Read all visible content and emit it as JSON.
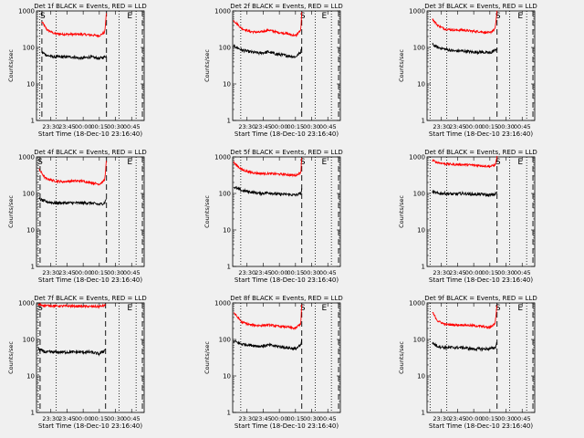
{
  "figure": {
    "background": "#f0f0f0"
  },
  "panels": [
    {
      "title": "Det 1f BLACK = Events, RED = LLD"
    },
    {
      "title": "Det 2f BLACK = Events, RED = LLD"
    },
    {
      "title": "Det 3f BLACK = Events, RED = LLD"
    },
    {
      "title": "Det 4f BLACK = Events, RED = LLD"
    },
    {
      "title": "Det 5f BLACK = Events, RED = LLD"
    },
    {
      "title": "Det 6f BLACK = Events, RED = LLD"
    },
    {
      "title": "Det 7f BLACK = Events, RED = LLD"
    },
    {
      "title": "Det 8f BLACK = Events, RED = LLD"
    },
    {
      "title": "Det 9f BLACK = Events, RED = LLD"
    }
  ],
  "chart_data": {
    "type": "line",
    "layout": "3x3 grid of panels",
    "xlabel": "Start Time (18-Dec-10 23:16:40)",
    "ylabel": "Counts/sec",
    "yscale": "log",
    "ylim": [
      1,
      1000
    ],
    "xlim_seconds_after_start": [
      0,
      6000
    ],
    "x_tick_labels": [
      "23:30",
      "23:45",
      "00:00",
      "00:15",
      "00:30",
      "00:45"
    ],
    "x_tick_seconds_after_start": [
      800,
      1700,
      2600,
      3500,
      4400,
      5300
    ],
    "y_tick_labels": [
      "1",
      "10",
      "100",
      "1000"
    ],
    "y_tick_values": [
      1,
      10,
      100,
      1000
    ],
    "series_colors": {
      "Events": "#000000",
      "LLD": "#ff0000"
    },
    "markers": [
      {
        "label": "S",
        "style": "dashed"
      },
      {
        "label": "E",
        "style": "dashed"
      }
    ],
    "panels": [
      {
        "title": "Det 1f BLACK = Events, RED = LLD",
        "data_start": 300,
        "data_end": 3900,
        "dotted": [
          170,
          1100,
          4600,
          5550
        ],
        "dashed": [
          300,
          3900,
          5900
        ],
        "S": 300,
        "E": 5200,
        "lld": {
          "t": [
            300,
            600,
            1000,
            1500,
            2000,
            2500,
            3000,
            3500,
            3800,
            3900
          ],
          "v": [
            500,
            300,
            240,
            230,
            230,
            230,
            220,
            210,
            260,
            900
          ]
        },
        "events": {
          "t": [
            300,
            600,
            1000,
            1500,
            2000,
            2500,
            3000,
            3500,
            3800,
            3900
          ],
          "v": [
            75,
            60,
            55,
            55,
            55,
            50,
            55,
            50,
            55,
            60
          ]
        }
      },
      {
        "title": "Det 2f BLACK = Events, RED = LLD",
        "data_start": 50,
        "data_end": 3850,
        "dotted": [
          450,
          4600,
          5500
        ],
        "dashed": [
          3850,
          5900
        ],
        "S": 3850,
        "E": 5100,
        "lld": {
          "t": [
            50,
            500,
            1000,
            1500,
            2000,
            2500,
            3000,
            3500,
            3800,
            3850
          ],
          "v": [
            550,
            330,
            270,
            260,
            300,
            260,
            240,
            210,
            300,
            900
          ]
        },
        "events": {
          "t": [
            50,
            500,
            1000,
            1500,
            2000,
            2500,
            3000,
            3500,
            3800,
            3850
          ],
          "v": [
            110,
            85,
            75,
            70,
            75,
            65,
            60,
            55,
            75,
            110
          ]
        }
      },
      {
        "title": "Det 3f BLACK = Events, RED = LLD",
        "data_start": 300,
        "data_end": 3900,
        "dotted": [
          170,
          1100,
          4600,
          5550
        ],
        "dashed": [
          3900,
          5900
        ],
        "S": 3900,
        "E": 5200,
        "lld": {
          "t": [
            300,
            600,
            1000,
            1500,
            2000,
            2500,
            3000,
            3500,
            3800,
            3900
          ],
          "v": [
            600,
            400,
            320,
            300,
            300,
            280,
            270,
            250,
            330,
            1000
          ]
        },
        "events": {
          "t": [
            300,
            600,
            1000,
            1500,
            2000,
            2500,
            3000,
            3500,
            3800,
            3900
          ],
          "v": [
            120,
            100,
            90,
            80,
            80,
            75,
            75,
            70,
            85,
            95
          ]
        }
      },
      {
        "title": "Det 4f BLACK = Events, RED = LLD",
        "data_start": 150,
        "data_end": 3900,
        "dotted": [
          100,
          1100,
          4600,
          5550
        ],
        "dashed": [
          200,
          3900,
          5900
        ],
        "S": 150,
        "E": 5200,
        "lld": {
          "t": [
            150,
            500,
            1000,
            1500,
            2000,
            2500,
            3000,
            3500,
            3800,
            3900
          ],
          "v": [
            450,
            260,
            220,
            210,
            220,
            220,
            200,
            180,
            230,
            850
          ]
        },
        "events": {
          "t": [
            150,
            500,
            1000,
            1500,
            2000,
            2500,
            3000,
            3500,
            3800,
            3900
          ],
          "v": [
            70,
            60,
            55,
            55,
            55,
            55,
            55,
            50,
            55,
            75
          ]
        }
      },
      {
        "title": "Det 5f BLACK = Events, RED = LLD",
        "data_start": 50,
        "data_end": 3850,
        "dotted": [
          450,
          4600,
          5500
        ],
        "dashed": [
          3850,
          5900
        ],
        "S": 3850,
        "E": 5100,
        "lld": {
          "t": [
            50,
            500,
            1000,
            1500,
            2000,
            2500,
            3000,
            3500,
            3800,
            3850
          ],
          "v": [
            700,
            450,
            380,
            350,
            350,
            340,
            330,
            310,
            380,
            1000
          ]
        },
        "events": {
          "t": [
            50,
            500,
            1000,
            1500,
            2000,
            2500,
            3000,
            3500,
            3800,
            3850
          ],
          "v": [
            150,
            120,
            110,
            100,
            105,
            95,
            95,
            90,
            100,
            130
          ]
        }
      },
      {
        "title": "Det 6f BLACK = Events, RED = LLD",
        "data_start": 300,
        "data_end": 3900,
        "dotted": [
          170,
          1100,
          4600,
          5550
        ],
        "dashed": [
          3900,
          5900
        ],
        "S": 3900,
        "E": 5200,
        "lld": {
          "t": [
            300,
            600,
            1000,
            1500,
            2000,
            2500,
            3000,
            3500,
            3800,
            3900
          ],
          "v": [
            800,
            700,
            650,
            620,
            620,
            600,
            580,
            550,
            600,
            1000
          ]
        },
        "events": {
          "t": [
            300,
            600,
            1000,
            1500,
            2000,
            2500,
            3000,
            3500,
            3800,
            3900
          ],
          "v": [
            110,
            100,
            100,
            95,
            100,
            95,
            95,
            90,
            95,
            110
          ]
        }
      },
      {
        "title": "Det 7f BLACK = Events, RED = LLD",
        "data_start": 100,
        "data_end": 3850,
        "dotted": [
          100,
          1100,
          4600,
          5550
        ],
        "dashed": [
          200,
          3850,
          5900
        ],
        "S": 150,
        "E": 5200,
        "lld": {
          "t": [
            100,
            500,
            1000,
            1500,
            2000,
            2500,
            3000,
            3500,
            3800,
            3850
          ],
          "v": [
            900,
            850,
            830,
            820,
            820,
            810,
            800,
            800,
            850,
            950
          ]
        },
        "events": {
          "t": [
            100,
            500,
            1000,
            1500,
            2000,
            2500,
            3000,
            3500,
            3800,
            3850
          ],
          "v": [
            55,
            45,
            45,
            45,
            45,
            45,
            45,
            40,
            50,
            60
          ]
        }
      },
      {
        "title": "Det 8f BLACK = Events, RED = LLD",
        "data_start": 50,
        "data_end": 3850,
        "dotted": [
          450,
          4600,
          5500
        ],
        "dashed": [
          3850,
          5900
        ],
        "S": 3850,
        "E": 5100,
        "lld": {
          "t": [
            50,
            500,
            1000,
            1500,
            2000,
            2500,
            3000,
            3500,
            3800,
            3850
          ],
          "v": [
            550,
            300,
            250,
            240,
            250,
            230,
            220,
            200,
            280,
            900
          ]
        },
        "events": {
          "t": [
            50,
            500,
            1000,
            1500,
            2000,
            2500,
            3000,
            3500,
            3800,
            3850
          ],
          "v": [
            90,
            75,
            70,
            65,
            70,
            65,
            60,
            55,
            70,
            100
          ]
        }
      },
      {
        "title": "Det 9f BLACK = Events, RED = LLD",
        "data_start": 300,
        "data_end": 3900,
        "dotted": [
          170,
          1100,
          4600,
          5550
        ],
        "dashed": [
          3900,
          5900
        ],
        "S": 3900,
        "E": 5200,
        "lld": {
          "t": [
            300,
            600,
            1000,
            1500,
            2000,
            2500,
            3000,
            3500,
            3800,
            3900
          ],
          "v": [
            550,
            320,
            260,
            250,
            250,
            240,
            230,
            210,
            280,
            900
          ]
        },
        "events": {
          "t": [
            300,
            600,
            1000,
            1500,
            2000,
            2500,
            3000,
            3500,
            3800,
            3900
          ],
          "v": [
            80,
            65,
            60,
            60,
            60,
            55,
            55,
            55,
            60,
            85
          ]
        }
      }
    ]
  }
}
